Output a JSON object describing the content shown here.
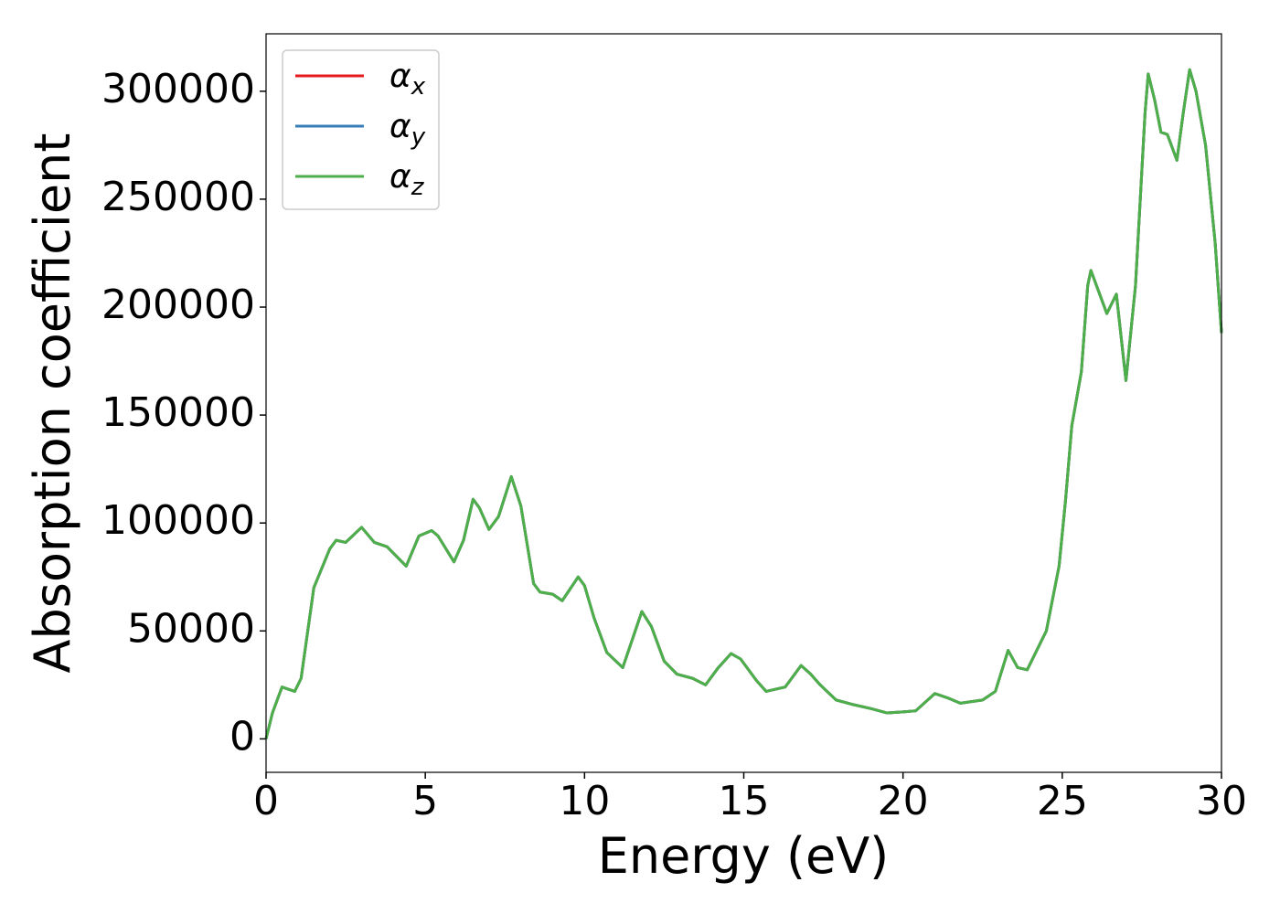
{
  "chart_data": {
    "type": "line",
    "x_label": "Energy (eV)",
    "y_label": "Absorption coefficient",
    "x": [
      0,
      0.2,
      0.5,
      0.9,
      1.1,
      1.5,
      2.0,
      2.2,
      2.5,
      3.0,
      3.4,
      3.8,
      4.4,
      4.8,
      5.2,
      5.4,
      5.9,
      6.2,
      6.5,
      6.7,
      7.0,
      7.3,
      7.7,
      8.0,
      8.4,
      8.6,
      9.0,
      9.3,
      9.8,
      10.0,
      10.3,
      10.7,
      11.2,
      11.5,
      11.8,
      12.1,
      12.5,
      12.9,
      13.4,
      13.8,
      14.2,
      14.6,
      14.9,
      15.4,
      15.7,
      16.3,
      16.8,
      17.1,
      17.4,
      17.9,
      18.4,
      19.0,
      19.5,
      20.0,
      20.4,
      21.0,
      21.4,
      21.8,
      22.5,
      22.9,
      23.3,
      23.6,
      23.9,
      24.5,
      24.9,
      25.1,
      25.3,
      25.6,
      25.8,
      25.9,
      26.2,
      26.4,
      26.7,
      27.0,
      27.3,
      27.6,
      27.7,
      27.9,
      28.1,
      28.3,
      28.6,
      28.8,
      29.0,
      29.2,
      29.5,
      29.8,
      30.0
    ],
    "series": [
      {
        "name": "αx",
        "color": "#e41a1c",
        "values": [
          0,
          12000,
          24000,
          22000,
          28000,
          70000,
          88000,
          92000,
          91000,
          98000,
          91000,
          89000,
          80000,
          94000,
          96500,
          94000,
          82000,
          92000,
          111000,
          107000,
          97000,
          103000,
          121500,
          108000,
          72000,
          68000,
          67000,
          64000,
          75000,
          71000,
          56000,
          40000,
          33000,
          46000,
          59000,
          52000,
          36000,
          30000,
          28000,
          25000,
          33000,
          39500,
          37000,
          27000,
          22000,
          24000,
          34000,
          30000,
          25000,
          18000,
          16000,
          14000,
          12000,
          12500,
          13000,
          21000,
          19000,
          16500,
          18000,
          22000,
          41000,
          33000,
          32000,
          50000,
          80000,
          110000,
          145000,
          170000,
          210000,
          217000,
          205000,
          197000,
          206000,
          166000,
          210000,
          290000,
          308000,
          296000,
          281000,
          280000,
          268000,
          290000,
          310000,
          300000,
          275000,
          230000,
          188000
        ]
      },
      {
        "name": "αy",
        "color": "#377eb8",
        "values": [
          0,
          12000,
          24000,
          22000,
          28000,
          70000,
          88000,
          92000,
          91000,
          98000,
          91000,
          89000,
          80000,
          94000,
          96500,
          94000,
          82000,
          92000,
          111000,
          107000,
          97000,
          103000,
          121500,
          108000,
          72000,
          68000,
          67000,
          64000,
          75000,
          71000,
          56000,
          40000,
          33000,
          46000,
          59000,
          52000,
          36000,
          30000,
          28000,
          25000,
          33000,
          39500,
          37000,
          27000,
          22000,
          24000,
          34000,
          30000,
          25000,
          18000,
          16000,
          14000,
          12000,
          12500,
          13000,
          21000,
          19000,
          16500,
          18000,
          22000,
          41000,
          33000,
          32000,
          50000,
          80000,
          110000,
          145000,
          170000,
          210000,
          217000,
          205000,
          197000,
          206000,
          166000,
          210000,
          290000,
          308000,
          296000,
          281000,
          280000,
          268000,
          290000,
          310000,
          300000,
          275000,
          230000,
          188000
        ]
      },
      {
        "name": "αz",
        "color": "#4daf4a",
        "values": [
          0,
          12000,
          24000,
          22000,
          28000,
          70000,
          88000,
          92000,
          91000,
          98000,
          91000,
          89000,
          80000,
          94000,
          96500,
          94000,
          82000,
          92000,
          111000,
          107000,
          97000,
          103000,
          121500,
          108000,
          72000,
          68000,
          67000,
          64000,
          75000,
          71000,
          56000,
          40000,
          33000,
          46000,
          59000,
          52000,
          36000,
          30000,
          28000,
          25000,
          33000,
          39500,
          37000,
          27000,
          22000,
          24000,
          34000,
          30000,
          25000,
          18000,
          16000,
          14000,
          12000,
          12500,
          13000,
          21000,
          19000,
          16500,
          18000,
          22000,
          41000,
          33000,
          32000,
          50000,
          80000,
          110000,
          145000,
          170000,
          210000,
          217000,
          205000,
          197000,
          206000,
          166000,
          210000,
          290000,
          308000,
          296000,
          281000,
          280000,
          268000,
          290000,
          310000,
          300000,
          275000,
          230000,
          188000
        ]
      }
    ],
    "xlim": [
      0,
      30
    ],
    "xticks": [
      0,
      5,
      10,
      15,
      20,
      25,
      30
    ],
    "ylim": [
      -15500,
      326600
    ],
    "yticks": [
      0,
      50000,
      100000,
      150000,
      200000,
      250000,
      300000
    ],
    "legend": "upper left"
  }
}
